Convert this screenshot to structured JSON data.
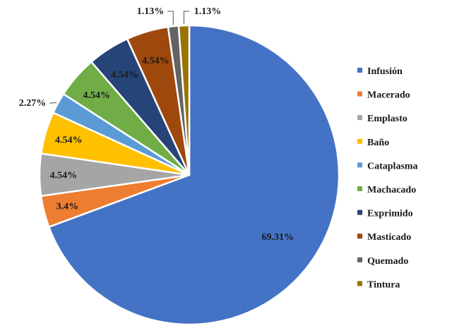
{
  "chart_data": {
    "type": "pie",
    "title": "",
    "legend_position": "right",
    "start_angle_deg": 0,
    "direction": "clockwise",
    "slices": [
      {
        "name": "Infusión",
        "value": 69.31,
        "label": "69.31%",
        "color": "#4472C4",
        "label_color": "#1a1a1a"
      },
      {
        "name": "Macerado",
        "value": 3.4,
        "label": "3.4%",
        "color": "#ED7D31",
        "label_color": "#1a1a1a"
      },
      {
        "name": "Emplasto",
        "value": 4.54,
        "label": "4.54%",
        "color": "#A5A5A5",
        "label_color": "#1a1a1a"
      },
      {
        "name": "Baño",
        "value": 4.54,
        "label": "4.54%",
        "color": "#FFC000",
        "label_color": "#1a1a1a"
      },
      {
        "name": "Cataplasma",
        "value": 2.27,
        "label": "2.27%",
        "color": "#5B9BD5",
        "label_color": "#1a1a1a"
      },
      {
        "name": "Machacado",
        "value": 4.54,
        "label": "4.54%",
        "color": "#70AD47",
        "label_color": "#1a1a1a"
      },
      {
        "name": "Exprimido",
        "value": 4.54,
        "label": "4.54%",
        "color": "#264478",
        "label_color": "#1a1a1a"
      },
      {
        "name": "Masticado",
        "value": 4.54,
        "label": "4.54%",
        "color": "#9E480E",
        "label_color": "#1a1a1a"
      },
      {
        "name": "Quemado",
        "value": 1.13,
        "label": "1.13%",
        "color": "#636363",
        "label_color": "#1a1a1a"
      },
      {
        "name": "Tintura",
        "value": 1.13,
        "label": "1.13%",
        "color": "#997300",
        "label_color": "#1a1a1a"
      }
    ]
  }
}
